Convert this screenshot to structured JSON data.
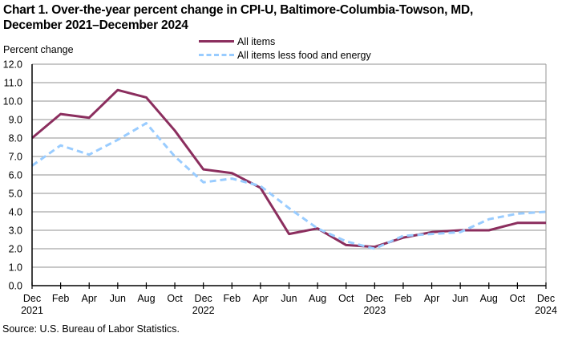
{
  "chart_data": {
    "type": "line",
    "title": "Chart 1. Over-the-year percent change in CPI-U, Baltimore-Columbia-Towson,  MD,\nDecember 2021–December  2024",
    "ylabel": "Percent change",
    "xlabel": "",
    "ylim": [
      0,
      12
    ],
    "yticks": [
      "0.0",
      "1.0",
      "2.0",
      "3.0",
      "4.0",
      "5.0",
      "6.0",
      "7.0",
      "8.0",
      "9.0",
      "10.0",
      "11.0",
      "12.0"
    ],
    "grid": true,
    "legend_position": "top-center",
    "x": [
      "Dec 2021",
      "Feb 2022",
      "Apr 2022",
      "Jun 2022",
      "Aug 2022",
      "Oct 2022",
      "Dec 2022",
      "Feb 2023",
      "Apr 2023",
      "Jun 2023",
      "Aug 2023",
      "Oct 2023",
      "Dec 2023",
      "Feb 2024",
      "Apr 2024",
      "Jun 2024",
      "Aug 2024",
      "Oct 2024",
      "Dec 2024"
    ],
    "xtick_labels": [
      {
        "month": "Dec",
        "year": "2021"
      },
      {
        "month": "Feb",
        "year": ""
      },
      {
        "month": "Apr",
        "year": ""
      },
      {
        "month": "Jun",
        "year": ""
      },
      {
        "month": "Aug",
        "year": ""
      },
      {
        "month": "Oct",
        "year": ""
      },
      {
        "month": "Dec",
        "year": "2022"
      },
      {
        "month": "Feb",
        "year": ""
      },
      {
        "month": "Apr",
        "year": ""
      },
      {
        "month": "Jun",
        "year": ""
      },
      {
        "month": "Aug",
        "year": ""
      },
      {
        "month": "Oct",
        "year": ""
      },
      {
        "month": "Dec",
        "year": "2023"
      },
      {
        "month": "Feb",
        "year": ""
      },
      {
        "month": "Apr",
        "year": ""
      },
      {
        "month": "Jun",
        "year": ""
      },
      {
        "month": "Aug",
        "year": ""
      },
      {
        "month": "Oct",
        "year": ""
      },
      {
        "month": "Dec",
        "year": "2024"
      }
    ],
    "series": [
      {
        "name": "All items",
        "color": "#8B2E5E",
        "style": "solid",
        "values": [
          8.0,
          9.3,
          9.1,
          10.6,
          10.2,
          8.4,
          6.3,
          6.1,
          5.3,
          2.8,
          3.1,
          2.2,
          2.1,
          2.6,
          2.9,
          3.0,
          3.0,
          3.4,
          3.4
        ]
      },
      {
        "name": "All items less food and energy",
        "color": "#99CCFF",
        "style": "dashed",
        "values": [
          6.5,
          7.6,
          7.1,
          7.9,
          8.8,
          7.0,
          5.6,
          5.8,
          5.4,
          4.2,
          3.1,
          2.4,
          2.0,
          2.7,
          2.8,
          2.9,
          3.6,
          3.9,
          4.0
        ]
      }
    ],
    "source": "Source: U.S. Bureau  of Labor  Statistics."
  }
}
